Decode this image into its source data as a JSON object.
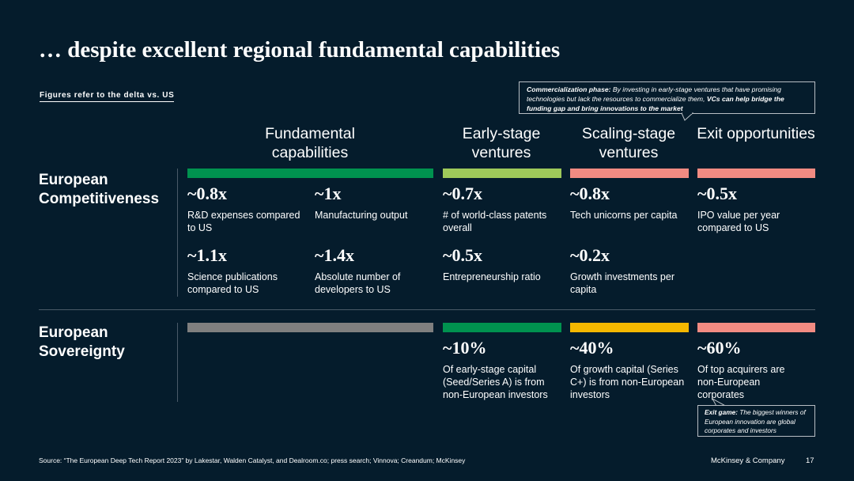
{
  "title": "… despite excellent regional fundamental capabilities",
  "note": "Figures refer to the delta vs. US",
  "callout_top": {
    "lead": "Commercialization phase:",
    "text": " By investing in early-stage ventures that have promising technologies but lack the resources to commercialize them, ",
    "bold": "VCs can help bridge the funding gap and bring innovations to the market"
  },
  "columns": {
    "fundamental": "Fundamental capabilities",
    "early": "Early-stage ventures",
    "scaling": "Scaling-stage ventures",
    "exit": "Exit opportunities"
  },
  "rows": {
    "competitiveness": "European Competitiveness",
    "sovereignty": "European Sovereignty"
  },
  "colors": {
    "dark_green": "#00924f",
    "light_green": "#9ec95a",
    "salmon": "#f28b82",
    "grey": "#7f7f7f",
    "yellow": "#f5b800",
    "background": "#051c2c"
  },
  "competitiveness_metrics": [
    {
      "value": "~0.8x",
      "label": "R&D expenses compared to US"
    },
    {
      "value": "~1x",
      "label": "Manufacturing output"
    },
    {
      "value": "~0.7x",
      "label": "# of world-class patents overall"
    },
    {
      "value": "~0.8x",
      "label": "Tech unicorns per capita"
    },
    {
      "value": "~0.5x",
      "label": "IPO value per year compared to US"
    },
    {
      "value": "~1.1x",
      "label": "Science publications compared to US"
    },
    {
      "value": "~1.4x",
      "label": "Absolute number of developers to US"
    },
    {
      "value": "~0.5x",
      "label": "Entrepreneurship ratio"
    },
    {
      "value": "~0.2x",
      "label": "Growth investments per capita"
    }
  ],
  "sovereignty_metrics": [
    {
      "value": "~10%",
      "label": "Of early-stage capital (Seed/Series A) is from non-European investors"
    },
    {
      "value": "~40%",
      "label": "Of growth capital (Series C+) is from non-European investors"
    },
    {
      "value": "~60%",
      "label": "Of top acquirers are non-European corporates"
    }
  ],
  "callout_bottom": {
    "lead": "Exit game:",
    "text": " The biggest winners of European innovation are global corporates and investors"
  },
  "footer": {
    "source": "Source: “The European Deep Tech Report 2023” by Lakestar, Walden Catalyst, and Dealroom.co; press search; Vinnova; Creandum; McKinsey",
    "company": "McKinsey & Company",
    "page": "17"
  }
}
